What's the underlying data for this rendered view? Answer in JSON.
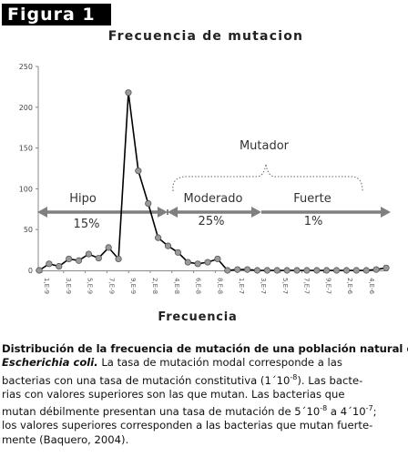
{
  "figure_label": "Figura  1",
  "chart_data": {
    "type": "line",
    "title": "Frecuencia de mutacion",
    "xlabel": "Frecuencia",
    "ylabel": "",
    "ylim": [
      0,
      250
    ],
    "yticks": [
      0,
      50,
      100,
      150,
      200,
      250
    ],
    "xtick_labels": [
      "1,E-9",
      "3,E-9",
      "5,E-9",
      "7,E-9",
      "9,E-9",
      "2,E-8",
      "4,E-8",
      "6,E-8",
      "8,E-8",
      "1,E-7",
      "3,E-7",
      "5,E-7",
      "7,E-7",
      "9,E-7",
      "2,E-6",
      "4,E-6"
    ],
    "series": [
      {
        "name": "",
        "values": [
          0,
          8,
          5,
          14,
          12,
          20,
          15,
          28,
          14,
          218,
          122,
          82,
          40,
          30,
          22,
          10,
          8,
          10,
          14,
          0,
          1,
          1,
          0,
          0,
          0,
          0,
          0,
          0,
          0,
          0,
          0,
          0,
          0,
          0,
          1,
          3
        ]
      }
    ],
    "annotations": {
      "mutador": "Mutador",
      "hipo": "Hipo",
      "hipo_pct": "15%",
      "moderado": "Moderado",
      "moderado_pct": "25%",
      "fuerte": "Fuerte",
      "fuerte_pct": "1%"
    },
    "colors": {
      "line": "#000000",
      "marker": "#9a9a9a",
      "arrow": "#7f7f7f",
      "axis": "#888888"
    }
  },
  "caption": {
    "bold": "Distribución de la frecuencia de mutación de una población natural de ",
    "bold_italic": "Escherichia coli.",
    "line2_rest": " La tasa de mutación modal corresponde a las",
    "line3": "bacterias con una tasa de mutación constitutiva (1´10",
    "line3_sup": "-8",
    "line3_end": "). Las bacte-",
    "line4": "rias con valores superiores son las que mutan. Las bacterias que",
    "line5a": "mutan débilmente presentan una tasa de mutación de 5´10",
    "line5_sup1": "-8",
    "line5b": " a 4´10",
    "line5_sup2": "-7",
    "line5c": ";",
    "line6": "los valores superiores corresponden a las bacterias que mutan fuerte-",
    "line7": "mente (Baquero, 2004)."
  }
}
